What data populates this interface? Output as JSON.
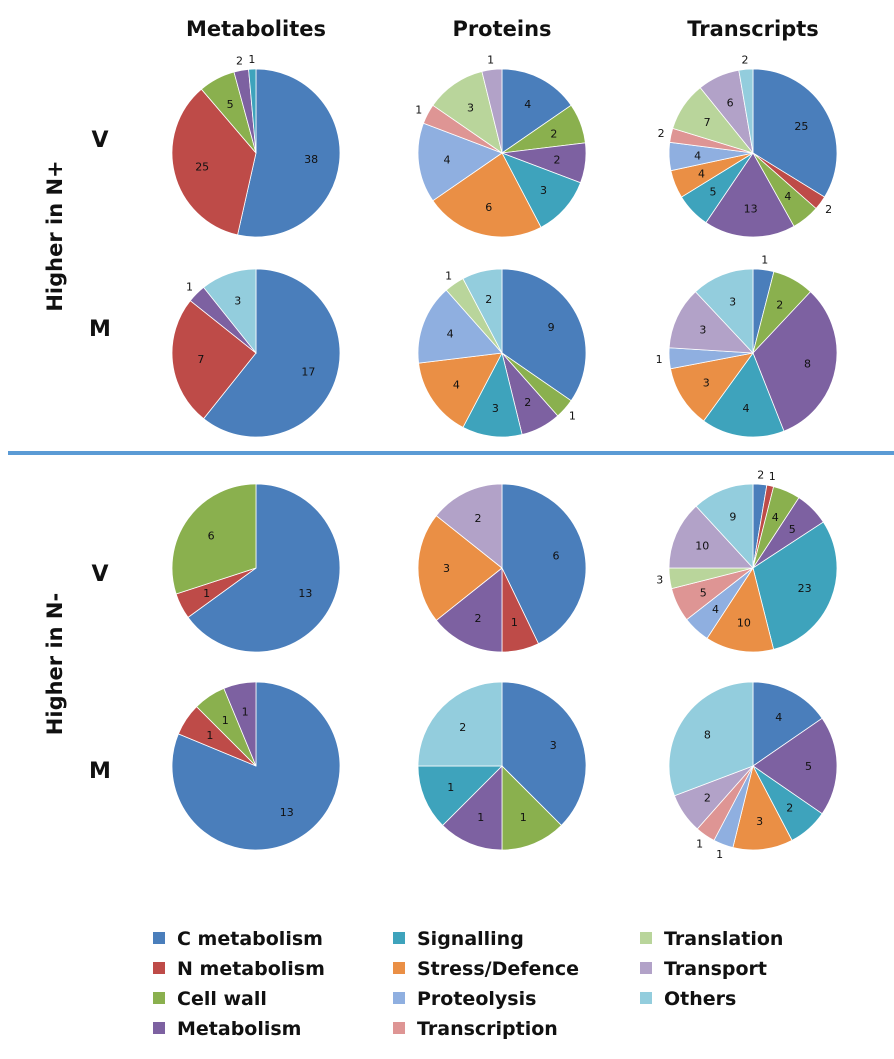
{
  "column_headers": [
    "Metabolites",
    "Proteins",
    "Transcripts"
  ],
  "group_labels": [
    "Higher in N+",
    "Higher in N-"
  ],
  "row_labels": [
    "V",
    "M",
    "V",
    "M"
  ],
  "legend": [
    {
      "label": "C metabolism",
      "color": "#4a7ebb"
    },
    {
      "label": "N metabolism",
      "color": "#be4b48"
    },
    {
      "label": "Cell wall",
      "color": "#8ab04e"
    },
    {
      "label": "Metabolism",
      "color": "#7d61a1"
    },
    {
      "label": "Signalling",
      "color": "#3ea3bc"
    },
    {
      "label": "Stress/Defence",
      "color": "#ea8f45"
    },
    {
      "label": "Proteolysis",
      "color": "#8fafe0"
    },
    {
      "label": "Transcription",
      "color": "#de9594"
    },
    {
      "label": "Translation",
      "color": "#b9d59b"
    },
    {
      "label": "Transport",
      "color": "#b2a2c8"
    },
    {
      "label": "Others",
      "color": "#93cddd"
    }
  ],
  "chart_data": [
    {
      "type": "pie",
      "group": "Higher in N+",
      "row": "V",
      "column": "Metabolites",
      "slices": [
        {
          "category": "C metabolism",
          "value": 38
        },
        {
          "category": "N metabolism",
          "value": 25
        },
        {
          "category": "Cell wall",
          "value": 5
        },
        {
          "category": "Metabolism",
          "value": 2
        },
        {
          "category": "Signalling",
          "value": 1
        }
      ]
    },
    {
      "type": "pie",
      "group": "Higher in N+",
      "row": "V",
      "column": "Proteins",
      "slices": [
        {
          "category": "C metabolism",
          "value": 4
        },
        {
          "category": "Cell wall",
          "value": 2
        },
        {
          "category": "Metabolism",
          "value": 2
        },
        {
          "category": "Signalling",
          "value": 3
        },
        {
          "category": "Stress/Defence",
          "value": 6
        },
        {
          "category": "Proteolysis",
          "value": 4
        },
        {
          "category": "Transcription",
          "value": 1
        },
        {
          "category": "Translation",
          "value": 3
        },
        {
          "category": "Transport",
          "value": 1
        }
      ]
    },
    {
      "type": "pie",
      "group": "Higher in N+",
      "row": "V",
      "column": "Transcripts",
      "slices": [
        {
          "category": "C metabolism",
          "value": 25
        },
        {
          "category": "N metabolism",
          "value": 2
        },
        {
          "category": "Cell wall",
          "value": 4
        },
        {
          "category": "Metabolism",
          "value": 13
        },
        {
          "category": "Signalling",
          "value": 5
        },
        {
          "category": "Stress/Defence",
          "value": 4
        },
        {
          "category": "Proteolysis",
          "value": 4
        },
        {
          "category": "Transcription",
          "value": 2
        },
        {
          "category": "Translation",
          "value": 7
        },
        {
          "category": "Transport",
          "value": 6
        },
        {
          "category": "Others",
          "value": 2
        }
      ]
    },
    {
      "type": "pie",
      "group": "Higher in N+",
      "row": "M",
      "column": "Metabolites",
      "slices": [
        {
          "category": "C metabolism",
          "value": 17
        },
        {
          "category": "N metabolism",
          "value": 7
        },
        {
          "category": "Metabolism",
          "value": 1
        },
        {
          "category": "Others",
          "value": 3
        }
      ]
    },
    {
      "type": "pie",
      "group": "Higher in N+",
      "row": "M",
      "column": "Proteins",
      "slices": [
        {
          "category": "C metabolism",
          "value": 9
        },
        {
          "category": "Cell wall",
          "value": 1
        },
        {
          "category": "Metabolism",
          "value": 2
        },
        {
          "category": "Signalling",
          "value": 3
        },
        {
          "category": "Stress/Defence",
          "value": 4
        },
        {
          "category": "Proteolysis",
          "value": 4
        },
        {
          "category": "Translation",
          "value": 1
        },
        {
          "category": "Others",
          "value": 2
        }
      ]
    },
    {
      "type": "pie",
      "group": "Higher in N+",
      "row": "M",
      "column": "Transcripts",
      "slices": [
        {
          "category": "C metabolism",
          "value": 1
        },
        {
          "category": "Cell wall",
          "value": 2
        },
        {
          "category": "Metabolism",
          "value": 8
        },
        {
          "category": "Signalling",
          "value": 4
        },
        {
          "category": "Stress/Defence",
          "value": 3
        },
        {
          "category": "Proteolysis",
          "value": 1
        },
        {
          "category": "Transport",
          "value": 3
        },
        {
          "category": "Others",
          "value": 3
        }
      ]
    },
    {
      "type": "pie",
      "group": "Higher in N-",
      "row": "V",
      "column": "Metabolites",
      "slices": [
        {
          "category": "C metabolism",
          "value": 13
        },
        {
          "category": "N metabolism",
          "value": 1
        },
        {
          "category": "Cell wall",
          "value": 6
        }
      ]
    },
    {
      "type": "pie",
      "group": "Higher in N-",
      "row": "V",
      "column": "Proteins",
      "slices": [
        {
          "category": "C metabolism",
          "value": 6
        },
        {
          "category": "N metabolism",
          "value": 1
        },
        {
          "category": "Metabolism",
          "value": 2
        },
        {
          "category": "Stress/Defence",
          "value": 3
        },
        {
          "category": "Transport",
          "value": 2
        }
      ]
    },
    {
      "type": "pie",
      "group": "Higher in N-",
      "row": "V",
      "column": "Transcripts",
      "slices": [
        {
          "category": "C metabolism",
          "value": 2
        },
        {
          "category": "N metabolism",
          "value": 1
        },
        {
          "category": "Cell wall",
          "value": 4
        },
        {
          "category": "Metabolism",
          "value": 5
        },
        {
          "category": "Signalling",
          "value": 23
        },
        {
          "category": "Stress/Defence",
          "value": 10
        },
        {
          "category": "Proteolysis",
          "value": 4
        },
        {
          "category": "Transcription",
          "value": 5
        },
        {
          "category": "Translation",
          "value": 3
        },
        {
          "category": "Transport",
          "value": 10
        },
        {
          "category": "Others",
          "value": 9
        }
      ]
    },
    {
      "type": "pie",
      "group": "Higher in N-",
      "row": "M",
      "column": "Metabolites",
      "slices": [
        {
          "category": "C metabolism",
          "value": 13
        },
        {
          "category": "N metabolism",
          "value": 1
        },
        {
          "category": "Cell wall",
          "value": 1
        },
        {
          "category": "Metabolism",
          "value": 1
        }
      ]
    },
    {
      "type": "pie",
      "group": "Higher in N-",
      "row": "M",
      "column": "Proteins",
      "slices": [
        {
          "category": "C metabolism",
          "value": 3
        },
        {
          "category": "Cell wall",
          "value": 1
        },
        {
          "category": "Metabolism",
          "value": 1
        },
        {
          "category": "Signalling",
          "value": 1
        },
        {
          "category": "Others",
          "value": 2
        }
      ]
    },
    {
      "type": "pie",
      "group": "Higher in N-",
      "row": "M",
      "column": "Transcripts",
      "slices": [
        {
          "category": "C metabolism",
          "value": 4
        },
        {
          "category": "Metabolism",
          "value": 5
        },
        {
          "category": "Signalling",
          "value": 2
        },
        {
          "category": "Stress/Defence",
          "value": 3
        },
        {
          "category": "Proteolysis",
          "value": 1
        },
        {
          "category": "Transcription",
          "value": 1
        },
        {
          "category": "Transport",
          "value": 2
        },
        {
          "category": "Others",
          "value": 8
        }
      ]
    }
  ]
}
